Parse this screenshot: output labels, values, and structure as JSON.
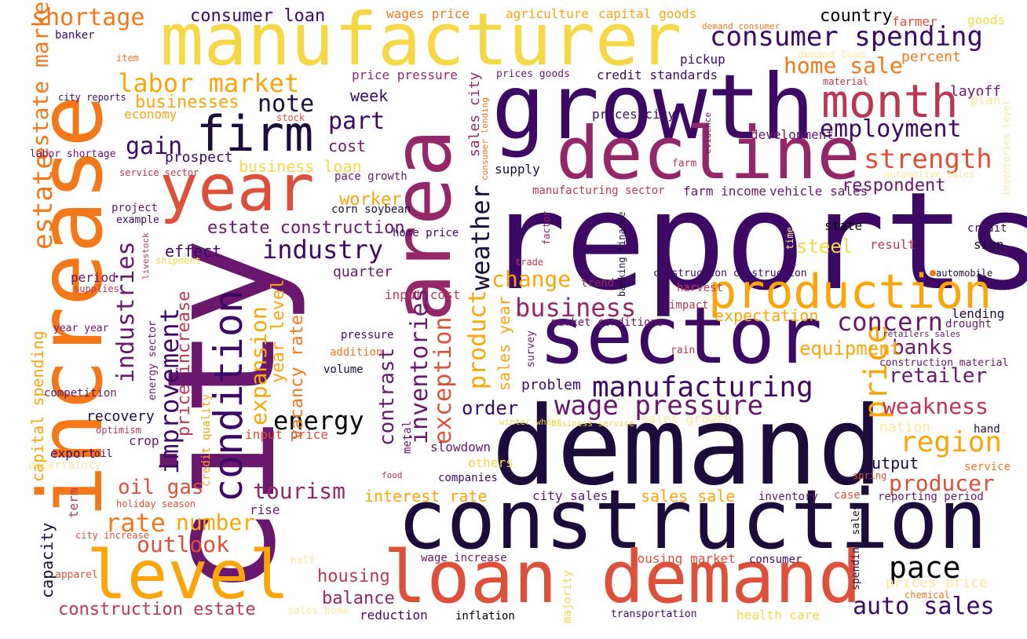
{
  "palette": {
    "c1": "#1c0c3c",
    "c2": "#3d0965",
    "c3": "#6a176e",
    "c4": "#93276a",
    "c5": "#bc3754",
    "c6": "#dd513a",
    "c7": "#f37819",
    "c8": "#fca50a",
    "c9": "#f6d746",
    "c10": "#fbe9a0",
    "black": "#000004"
  },
  "words": [
    "reports",
    "city",
    "demand",
    "increase",
    "growth",
    "area",
    "manufacturer",
    "construction",
    "sector",
    "decline",
    "loan demand",
    "level",
    "year",
    "production",
    "firm",
    "condition",
    "month",
    "consumer spending",
    "labor market",
    "estate",
    "improvement",
    "industries",
    "employment",
    "strength",
    "manufacturing",
    "wage pressure",
    "price",
    "region",
    "auto sales",
    "pace",
    "energy",
    "industry",
    "tourism",
    "business",
    "concern",
    "change",
    "expansion",
    "note",
    "part",
    "gain",
    "cost",
    "shortage",
    "consumer loan",
    "country",
    "home sale",
    "business loan",
    "worker",
    "estate construction",
    "respondent",
    "steel",
    "weather",
    "product",
    "inventories",
    "exception",
    "contrast",
    "vacancy rate",
    "year level",
    "price increase",
    "retailer",
    "weakness",
    "banks",
    "order",
    "equipment",
    "producer",
    "output",
    "oil gas",
    "rate",
    "number",
    "outlook",
    "housing",
    "balance",
    "construction estate",
    "capital spending",
    "capacity",
    "term",
    "sales sale",
    "interest rate",
    "expectation",
    "sales year",
    "estate market",
    "wages price",
    "agriculture",
    "capital goods",
    "farmer",
    "goods",
    "percent",
    "layoff",
    "plan",
    "pickup",
    "credit standards",
    "price pressure",
    "prices goods",
    "week",
    "businesses",
    "economy",
    "prospect",
    "pace growth",
    "supply",
    "development",
    "farm income",
    "vehicle sales",
    "manufacturing sector",
    "corn soybean",
    "home price",
    "effect",
    "quarter",
    "period",
    "input cost",
    "problem",
    "recovery",
    "crop",
    "export",
    "oil",
    "uncertainty",
    "competition",
    "optimism",
    "input price",
    "metal",
    "slowdown",
    "others",
    "companies",
    "city sales",
    "inventory",
    "case",
    "reporting period",
    "rise",
    "wage increase",
    "housing market",
    "consumer",
    "spending sales",
    "prices price",
    "chemical",
    "health care",
    "inflation",
    "reduction",
    "transportation",
    "sales home",
    "holiday season",
    "city increase",
    "apparel",
    "half",
    "majority",
    "banker",
    "item",
    "city reports",
    "labor shortage",
    "service sector",
    "project",
    "example",
    "livestock",
    "shipment",
    "supplies",
    "year year",
    "energy sector",
    "credit quality",
    "pressure",
    "addition",
    "volume",
    "survey",
    "factor",
    "trade",
    "trend",
    "impact",
    "banking finance",
    "harvest",
    "construction construction",
    "market conditions",
    "rain",
    "construction material",
    "retailers sales",
    "drought",
    "lending",
    "automobile",
    "state",
    "credit",
    "result",
    "sign",
    "time",
    "automotive sales",
    "inventories level",
    "demand loan",
    "demand consumer",
    "material",
    "stock",
    "consumer lending",
    "sales city",
    "prices city",
    "evidence",
    "farm",
    "business service",
    "winter wheat",
    "sales growth",
    "nation",
    "hand",
    "service",
    "spring",
    "food"
  ]
}
